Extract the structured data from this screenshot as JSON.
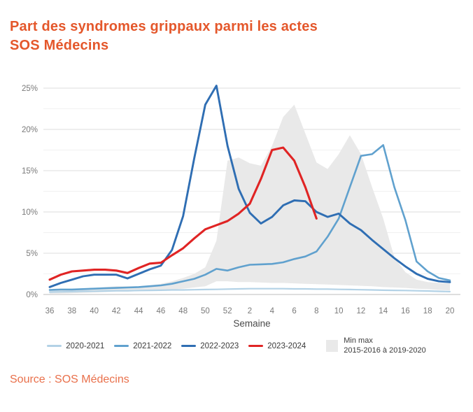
{
  "header": {
    "title_line1": "Part des syndromes grippaux parmi les actes",
    "title_line2": "SOS Médecins",
    "title_color": "#E4572B"
  },
  "source": {
    "text": "Source : SOS Médecins",
    "color": "#E9704B"
  },
  "legend": {
    "band_line1": "Min max",
    "band_line2": "2015-2016 à 2019-2020"
  },
  "chart_data": {
    "type": "line",
    "title": "Part des syndromes grippaux parmi les actes SOS Médecins",
    "xlabel": "Semaine",
    "ylabel": "",
    "ylim": [
      0,
      27
    ],
    "grid": true,
    "legend_position": "bottom",
    "y_ticks": [
      "0%",
      "5%",
      "10%",
      "15%",
      "20%",
      "25%"
    ],
    "x_tick_labels": [
      "36",
      "38",
      "40",
      "42",
      "44",
      "46",
      "48",
      "50",
      "52",
      "2",
      "4",
      "6",
      "8",
      "10",
      "12",
      "14",
      "16",
      "18",
      "20"
    ],
    "categories": [
      "36",
      "37",
      "38",
      "39",
      "40",
      "41",
      "42",
      "43",
      "44",
      "45",
      "46",
      "47",
      "48",
      "49",
      "50",
      "51",
      "52",
      "1",
      "2",
      "3",
      "4",
      "5",
      "6",
      "7",
      "8",
      "9",
      "10",
      "11",
      "12",
      "13",
      "14",
      "15",
      "16",
      "17",
      "18",
      "19",
      "20"
    ],
    "series": [
      {
        "name": "2020-2021",
        "color": "#B3D2E6",
        "values": [
          0.3,
          0.32,
          0.35,
          0.38,
          0.4,
          0.42,
          0.45,
          0.45,
          0.48,
          0.5,
          0.52,
          0.55,
          0.55,
          0.58,
          0.6,
          0.62,
          0.65,
          0.68,
          0.7,
          0.7,
          0.7,
          0.7,
          0.68,
          0.68,
          0.65,
          0.65,
          0.62,
          0.6,
          0.58,
          0.55,
          0.52,
          0.5,
          0.48,
          0.45,
          0.42,
          0.38,
          0.35
        ]
      },
      {
        "name": "2021-2022",
        "color": "#60A1CE",
        "values": [
          0.55,
          0.6,
          0.6,
          0.65,
          0.7,
          0.75,
          0.8,
          0.85,
          0.9,
          1.0,
          1.1,
          1.3,
          1.6,
          1.9,
          2.4,
          3.1,
          2.9,
          3.3,
          3.6,
          3.65,
          3.7,
          3.9,
          4.3,
          4.6,
          5.2,
          7.0,
          9.2,
          13.0,
          16.8,
          17.0,
          18.1,
          13.0,
          9.0,
          4.0,
          2.8,
          2.0,
          1.7
        ]
      },
      {
        "name": "2022-2023",
        "color": "#2F6EB3",
        "values": [
          0.9,
          1.4,
          1.8,
          2.2,
          2.4,
          2.4,
          2.4,
          1.95,
          2.5,
          3.05,
          3.5,
          5.4,
          9.5,
          16.5,
          23.0,
          25.3,
          18.0,
          12.8,
          9.9,
          8.6,
          9.4,
          10.8,
          11.4,
          11.3,
          10.0,
          9.4,
          9.8,
          8.6,
          7.8,
          6.6,
          5.5,
          4.4,
          3.4,
          2.5,
          1.9,
          1.6,
          1.5
        ]
      },
      {
        "name": "2023-2024",
        "color": "#E02424",
        "values": [
          1.8,
          2.4,
          2.8,
          2.9,
          3.0,
          3.0,
          2.9,
          2.6,
          3.2,
          3.75,
          3.85,
          4.75,
          5.6,
          6.8,
          7.9,
          8.4,
          8.9,
          9.8,
          11.0,
          14.0,
          17.5,
          17.8,
          16.2,
          13.0,
          9.2,
          null,
          null,
          null,
          null,
          null,
          null,
          null,
          null,
          null,
          null,
          null,
          null
        ]
      }
    ],
    "band": {
      "name": "Min max 2015-2016 à 2019-2020",
      "color": "#E9E9E9",
      "max": [
        0.5,
        0.55,
        0.6,
        0.7,
        0.8,
        0.9,
        1.0,
        1.0,
        1.0,
        1.1,
        1.3,
        1.6,
        2.0,
        2.5,
        3.3,
        6.5,
        16.2,
        16.6,
        15.9,
        15.6,
        18.0,
        21.5,
        23.0,
        19.5,
        16.0,
        15.2,
        17.0,
        19.3,
        17.0,
        13.0,
        9.2,
        4.5,
        2.7,
        1.8,
        1.5,
        1.4,
        1.35
      ],
      "min": [
        0.1,
        0.12,
        0.15,
        0.2,
        0.25,
        0.3,
        0.35,
        0.35,
        0.4,
        0.45,
        0.5,
        0.6,
        0.7,
        0.85,
        1.0,
        1.6,
        1.6,
        1.5,
        1.5,
        1.45,
        1.4,
        1.4,
        1.35,
        1.3,
        1.25,
        1.2,
        1.15,
        1.1,
        1.05,
        1.0,
        0.9,
        0.85,
        0.8,
        0.7,
        0.65,
        0.55,
        0.5
      ]
    }
  }
}
